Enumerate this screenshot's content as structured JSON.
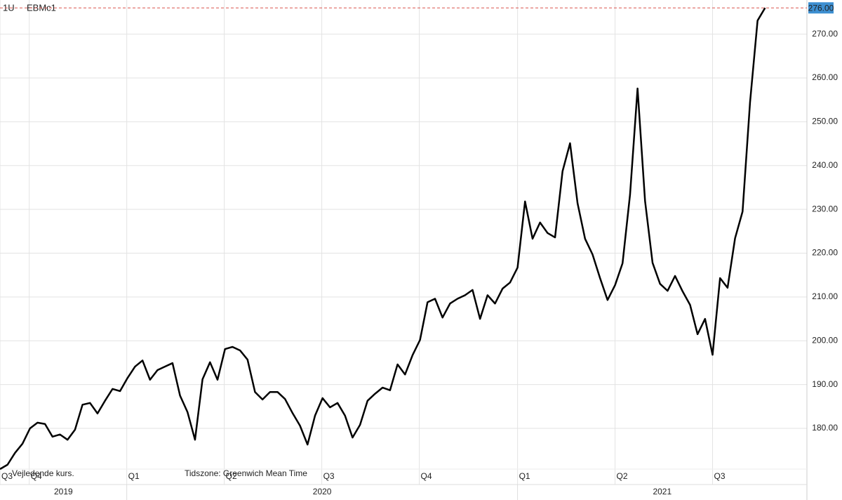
{
  "chart_data": {
    "type": "line",
    "interval": "1U",
    "symbol": "EBMc1",
    "note": "Vejledende kurs.",
    "timezone": "Tidszone: Greenwich Mean Time",
    "color": "#000000",
    "grid": true,
    "values": [
      170.7,
      171.7,
      174.4,
      176.5,
      180,
      181.3,
      181,
      178.1,
      178.6,
      177.4,
      179.7,
      185.4,
      185.8,
      183.4,
      186.3,
      189,
      188.5,
      191.5,
      194.1,
      195.5,
      191.1,
      193.3,
      194.1,
      194.9,
      187.5,
      183.7,
      177.4,
      191.2,
      195.1,
      191.1,
      198.1,
      198.6,
      197.8,
      195.7,
      188.3,
      186.6,
      188.3,
      188.3,
      186.7,
      183.5,
      180.6,
      176.3,
      182.9,
      186.9,
      184.8,
      185.8,
      182.9,
      177.9,
      180.8,
      186.3,
      187.9,
      189.3,
      188.7,
      194.6,
      192.3,
      196.7,
      200.2,
      208.8,
      209.6,
      205.3,
      208.5,
      209.6,
      210.4,
      211.6,
      205,
      210.4,
      208.5,
      211.9,
      213.3,
      216.7,
      231.8,
      223.3,
      227,
      224.6,
      223.6,
      238.7,
      245.1,
      231.4,
      223.3,
      219.7,
      214.3,
      209.3,
      212.7,
      217.7,
      233.4,
      257.6,
      231.9,
      217.8,
      213,
      211.4,
      214.8,
      211.3,
      208.2,
      201.5,
      205,
      196.8,
      214.3,
      212.1,
      223.4,
      229.5,
      254.5,
      273.1,
      276
    ],
    "xlim": [
      0,
      107.58
    ],
    "xticks": [
      {
        "value": 0,
        "label": "Q3"
      },
      {
        "value": 3.9,
        "label": "Q4"
      },
      {
        "value": 16.9,
        "label": "Q1"
      },
      {
        "value": 29.9,
        "label": "Q2"
      },
      {
        "value": 42.9,
        "label": "Q3"
      },
      {
        "value": 55.9,
        "label": "Q4"
      },
      {
        "value": 69,
        "label": "Q1"
      },
      {
        "value": 82,
        "label": "Q2"
      },
      {
        "value": 95,
        "label": "Q3"
      }
    ],
    "years": [
      "2019",
      "2020",
      "2021"
    ],
    "year_ticks": [
      16.9,
      69
    ],
    "ylim": [
      170.7,
      277.8
    ],
    "yticks": [
      {
        "value": 180,
        "label": "180.00"
      },
      {
        "value": 190,
        "label": "190.00"
      },
      {
        "value": 200,
        "label": "200.00"
      },
      {
        "value": 210,
        "label": "210.00"
      },
      {
        "value": 220,
        "label": "220.00"
      },
      {
        "value": 230,
        "label": "230.00"
      },
      {
        "value": 240,
        "label": "240.00"
      },
      {
        "value": 250,
        "label": "250.00"
      },
      {
        "value": 260,
        "label": "260.00"
      },
      {
        "value": 270,
        "label": "270.00"
      }
    ],
    "last_value": {
      "value": 276,
      "label": "276.00"
    }
  }
}
